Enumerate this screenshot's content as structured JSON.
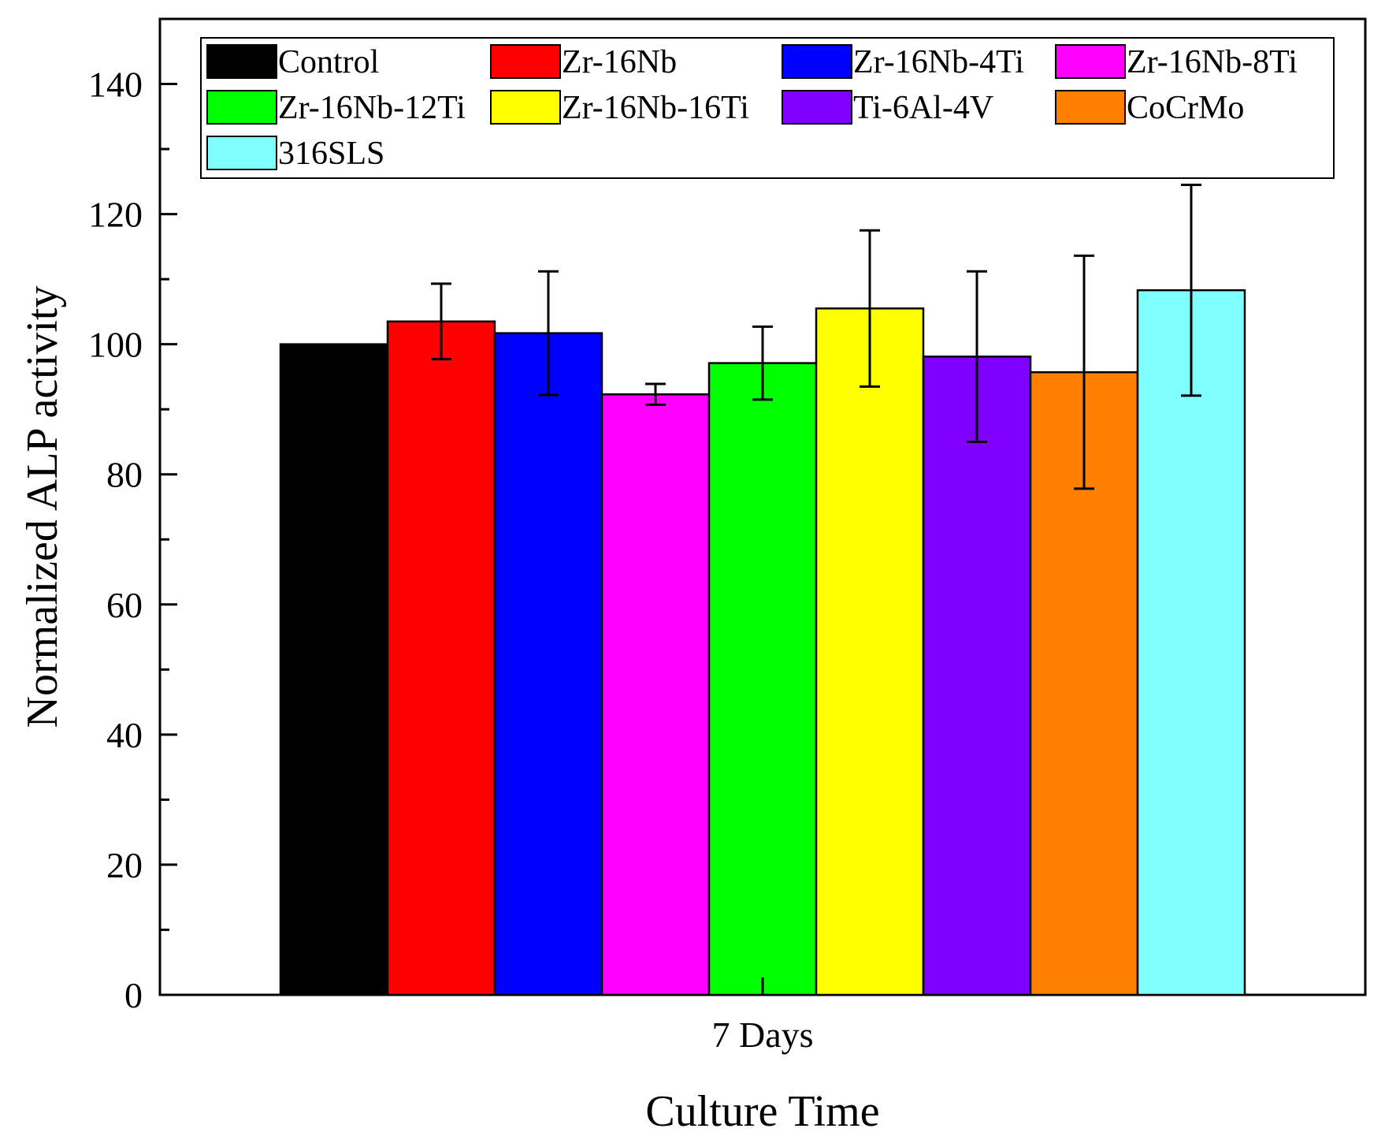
{
  "chart_data": {
    "type": "bar",
    "title": "",
    "xlabel": "Culture Time",
    "ylabel": "Normalized ALP activity",
    "categories": [
      "7 Days"
    ],
    "ylim": [
      0,
      150
    ],
    "yticks": [
      0,
      20,
      40,
      60,
      80,
      100,
      120,
      140
    ],
    "grid": false,
    "legend_position": "top",
    "series": [
      {
        "name": "Control",
        "color": "#000000",
        "value": 100.0,
        "error": 0
      },
      {
        "name": "Zr-16Nb",
        "color": "#ff0000",
        "value": 103.5,
        "error": 5.8
      },
      {
        "name": "Zr-16Nb-4Ti",
        "color": "#0000ff",
        "value": 101.7,
        "error": 9.5
      },
      {
        "name": "Zr-16Nb-8Ti",
        "color": "#ff00ff",
        "value": 92.3,
        "error": 1.6
      },
      {
        "name": "Zr-16Nb-12Ti",
        "color": "#00ff00",
        "value": 97.1,
        "error": 5.6
      },
      {
        "name": "Zr-16Nb-16Ti",
        "color": "#ffff00",
        "value": 105.5,
        "error": 12.0
      },
      {
        "name": "Ti-6Al-4V",
        "color": "#8000ff",
        "value": 98.1,
        "error": 13.1
      },
      {
        "name": "CoCrMo",
        "color": "#ff8000",
        "value": 95.7,
        "error": 17.9
      },
      {
        "name": "316SLS",
        "color": "#80ffff",
        "value": 108.3,
        "error": 16.2
      }
    ]
  }
}
